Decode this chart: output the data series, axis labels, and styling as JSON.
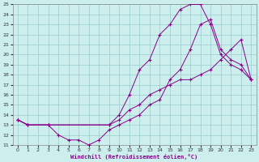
{
  "xlabel": "Windchill (Refroidissement éolien,°C)",
  "xlim": [
    -0.5,
    23.5
  ],
  "ylim": [
    11,
    25
  ],
  "xticks": [
    0,
    1,
    2,
    3,
    4,
    5,
    6,
    7,
    8,
    9,
    10,
    11,
    12,
    13,
    14,
    15,
    16,
    17,
    18,
    19,
    20,
    21,
    22,
    23
  ],
  "yticks": [
    11,
    12,
    13,
    14,
    15,
    16,
    17,
    18,
    19,
    20,
    21,
    22,
    23,
    24,
    25
  ],
  "bg_color": "#cceeed",
  "line_color": "#880088",
  "grid_color": "#99cccc",
  "line1_x": [
    0,
    1,
    3,
    4,
    5,
    6,
    7,
    8,
    9,
    10,
    11,
    12,
    13,
    14,
    15,
    16,
    17,
    18,
    19,
    20,
    21,
    22,
    23
  ],
  "line1_y": [
    13.5,
    13,
    13,
    12,
    11.5,
    11.5,
    11.0,
    11.5,
    12.5,
    13.0,
    13.5,
    14.0,
    15.0,
    15.5,
    17.5,
    18.5,
    20.5,
    23.0,
    23.5,
    20.5,
    19.5,
    19.0,
    17.5
  ],
  "line2_x": [
    0,
    1,
    3,
    9,
    10,
    11,
    12,
    13,
    14,
    15,
    16,
    17,
    18,
    19,
    20,
    21,
    22,
    23
  ],
  "line2_y": [
    13.5,
    13,
    13,
    13.0,
    13.5,
    14.5,
    15.0,
    16.0,
    16.5,
    17.0,
    17.5,
    17.5,
    18.0,
    18.5,
    19.5,
    20.5,
    21.5,
    17.5
  ],
  "line3_x": [
    0,
    1,
    3,
    9,
    10,
    11,
    12,
    13,
    14,
    15,
    16,
    17,
    18,
    19,
    20,
    21,
    22,
    23
  ],
  "line3_y": [
    13.5,
    13,
    13,
    13.0,
    14.0,
    16.0,
    18.5,
    19.5,
    22.0,
    23.0,
    24.5,
    25.0,
    25.0,
    23.0,
    20.0,
    19.0,
    18.5,
    17.5
  ]
}
